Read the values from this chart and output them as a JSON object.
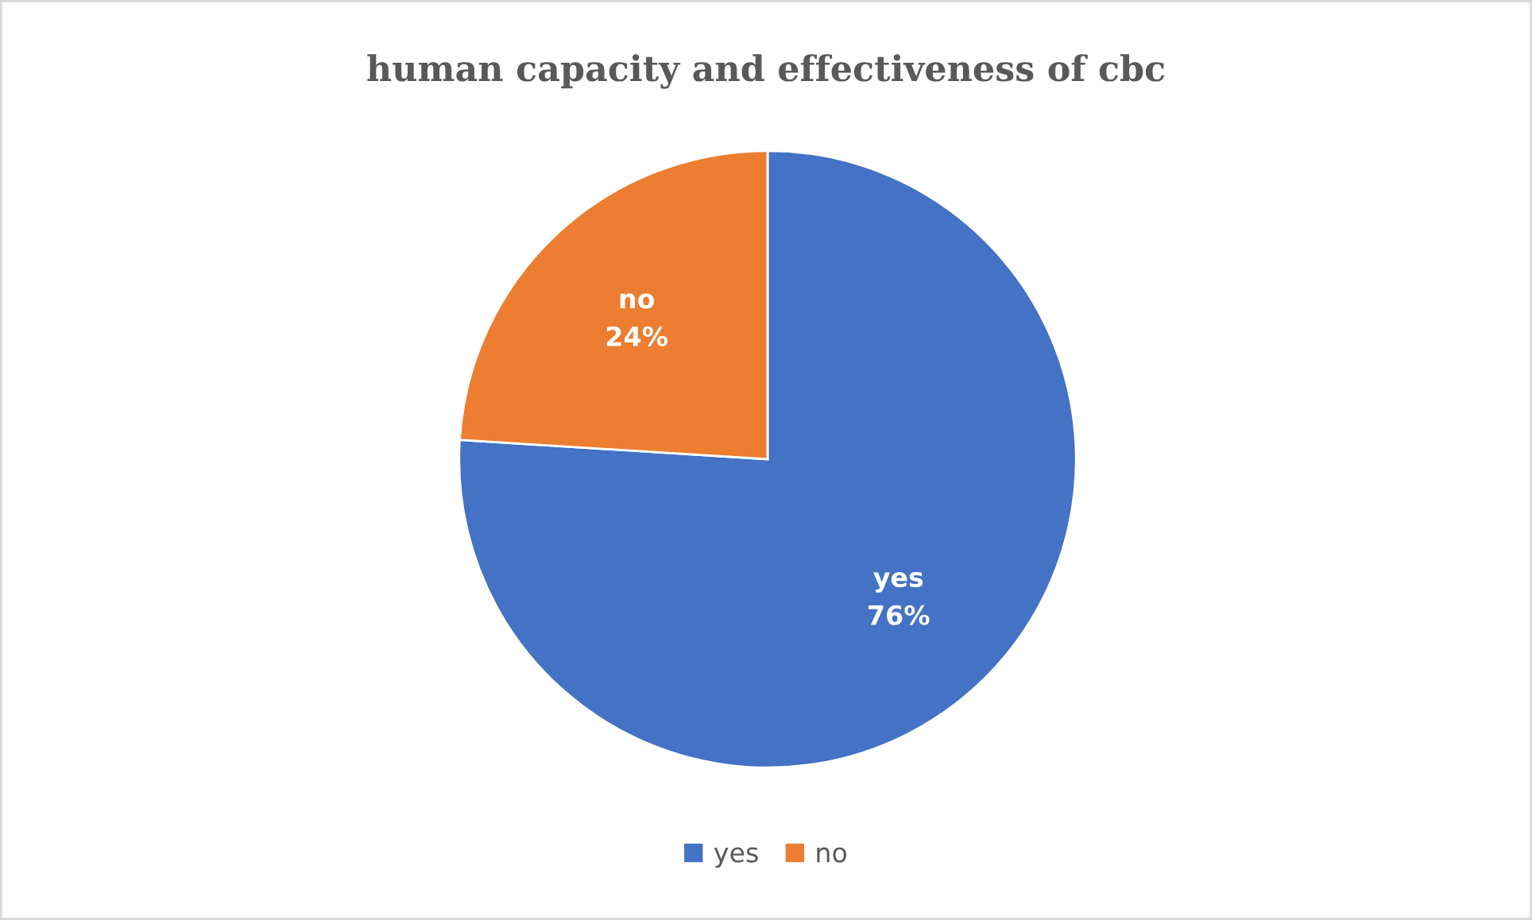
{
  "chart_data": {
    "type": "pie",
    "title": "human capacity and effectiveness of cbc",
    "categories": [
      "yes",
      "no"
    ],
    "values": [
      76,
      24
    ],
    "colors": [
      "#4472c4",
      "#ed7d31"
    ],
    "value_labels": [
      "76%",
      "24%"
    ],
    "legend": "bottom"
  }
}
